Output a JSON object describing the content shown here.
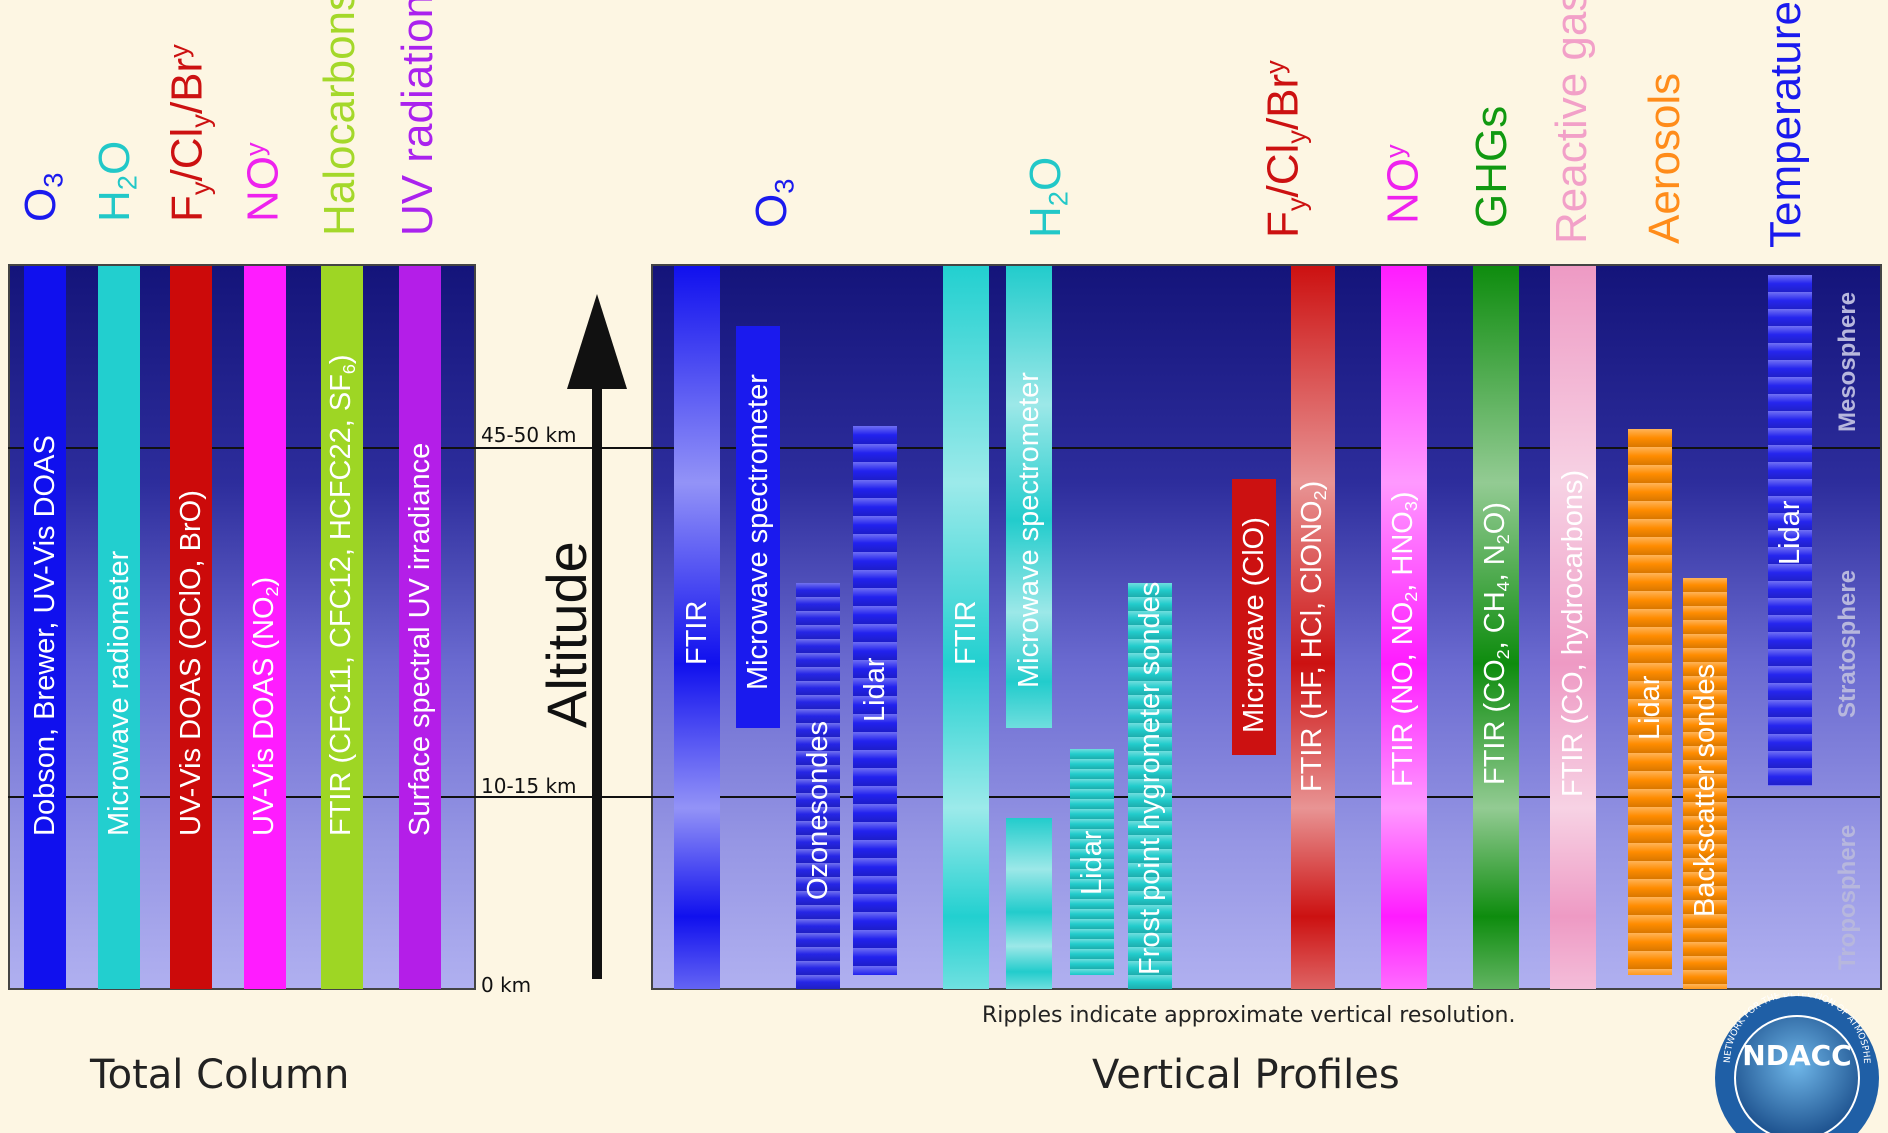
{
  "altitude_marks": [
    "0 km",
    "10-15 km",
    "45-50 km"
  ],
  "altitude_label": "Altitude",
  "zones": [
    "Troposphere",
    "Stratosphere",
    "Mesosphere"
  ],
  "total_column": {
    "title": "Total Column",
    "headers": [
      {
        "name": "o3",
        "parts": [
          [
            "O",
            ""
          ],
          [
            "3",
            "sub"
          ]
        ],
        "color": "#1a1aee"
      },
      {
        "name": "h2o",
        "parts": [
          [
            "H",
            ""
          ],
          [
            "2",
            "sub"
          ],
          [
            "O",
            ""
          ]
        ],
        "color": "#22c8c8"
      },
      {
        "name": "fy-cly-bry",
        "parts": [
          [
            "F",
            ""
          ],
          [
            "y",
            "sub"
          ],
          [
            "/Cl",
            ""
          ],
          [
            "y",
            "sub"
          ],
          [
            "/Br",
            ""
          ],
          [
            "y",
            "sup"
          ]
        ],
        "color": "#cc1111"
      },
      {
        "name": "noy",
        "parts": [
          [
            "NO",
            ""
          ],
          [
            "y",
            "sup"
          ]
        ],
        "color": "#ee22ee"
      },
      {
        "name": "halocarbons",
        "parts": [
          [
            "Halocarbons",
            ""
          ]
        ],
        "color": "#a4d82a"
      },
      {
        "name": "uv-radiation",
        "parts": [
          [
            "UV radiation",
            ""
          ]
        ],
        "color": "#aa22ee"
      }
    ],
    "bars": [
      {
        "name": "dobson",
        "color": "#1010ee",
        "parts": [
          [
            "Dobson, Brewer, UV-Vis DOAS",
            ""
          ]
        ]
      },
      {
        "name": "microwave-radiometer",
        "color": "#22cfcf",
        "parts": [
          [
            "Microwave radiometer",
            ""
          ]
        ]
      },
      {
        "name": "uv-vis-doas-oclo-bro",
        "color": "#cc0a0a",
        "parts": [
          [
            "UV-Vis DOAS (OClO, BrO)",
            ""
          ]
        ]
      },
      {
        "name": "uv-vis-doas-no2",
        "color": "#ff1cff",
        "parts": [
          [
            "UV-Vis DOAS (NO",
            ""
          ],
          [
            "2",
            "sub"
          ],
          [
            ")",
            ""
          ]
        ]
      },
      {
        "name": "ftir-halocarbons",
        "color": "#9ed624",
        "parts": [
          [
            "FTIR (CFC11, CFC12, HCFC22, SF",
            ""
          ],
          [
            "6",
            "sub"
          ],
          [
            ")",
            ""
          ]
        ]
      },
      {
        "name": "surface-uv",
        "color": "#b41ee8",
        "parts": [
          [
            "Surface spectral UV irradiance",
            ""
          ]
        ]
      }
    ]
  },
  "vertical_profiles": {
    "title": "Vertical Profiles",
    "note": "Ripples indicate approximate vertical resolution.",
    "headers": [
      {
        "name": "o3",
        "parts": [
          [
            "O",
            ""
          ],
          [
            "3",
            "sub"
          ]
        ],
        "color": "#1a1aee"
      },
      {
        "name": "h2o",
        "parts": [
          [
            "H",
            ""
          ],
          [
            "2",
            "sub"
          ],
          [
            "O",
            ""
          ]
        ],
        "color": "#22c8c8"
      },
      {
        "name": "fy-cly-bry",
        "parts": [
          [
            "F",
            ""
          ],
          [
            "y",
            "sub"
          ],
          [
            "/Cl",
            ""
          ],
          [
            "y",
            "sub"
          ],
          [
            "/Br",
            ""
          ],
          [
            "y",
            "sup"
          ]
        ],
        "color": "#cc1111"
      },
      {
        "name": "noy",
        "parts": [
          [
            "NO",
            ""
          ],
          [
            "y",
            "sup"
          ]
        ],
        "color": "#ee22ee"
      },
      {
        "name": "ghgs",
        "parts": [
          [
            "GHGs",
            ""
          ]
        ],
        "color": "#119911"
      },
      {
        "name": "reactive-gases",
        "parts": [
          [
            "Reactive gases",
            ""
          ]
        ],
        "color": "#f2a0c8"
      },
      {
        "name": "aerosols",
        "parts": [
          [
            "Aerosols",
            ""
          ]
        ],
        "color": "#ff8c1a"
      },
      {
        "name": "temperature",
        "parts": [
          [
            "Temperature",
            ""
          ]
        ],
        "color": "#1a1aee"
      }
    ],
    "bars": [
      {
        "name": "o3-ftir",
        "color": "#1010ee",
        "style": "smooth",
        "parts": [
          [
            "FTIR",
            ""
          ]
        ]
      },
      {
        "name": "o3-microwave-spectrometer",
        "color": "#1a1aee",
        "style": "plain",
        "parts": [
          [
            "Microwave spectrometer",
            ""
          ]
        ]
      },
      {
        "name": "ozonesondes",
        "color": "#2626e6",
        "style": "ripple",
        "parts": [
          [
            "Ozonesondes",
            ""
          ]
        ]
      },
      {
        "name": "o3-lidar",
        "color": "#2222ee",
        "style": "ripple",
        "parts": [
          [
            "Lidar",
            ""
          ]
        ]
      },
      {
        "name": "h2o-ftir",
        "color": "#22d0d0",
        "style": "smooth",
        "parts": [
          [
            "FTIR",
            ""
          ]
        ]
      },
      {
        "name": "h2o-microwave-spectrometer",
        "color": "#22cccc",
        "style": "smooth",
        "parts": [
          [
            "Microwave spectrometer",
            ""
          ]
        ]
      },
      {
        "name": "h2o-lidar",
        "color": "#22cccc",
        "style": "ripple",
        "parts": [
          [
            "Lidar",
            ""
          ]
        ]
      },
      {
        "name": "frost-point-hygrometer",
        "color": "#22cccc",
        "style": "ripple",
        "parts": [
          [
            "Frost point hygrometer sondes",
            ""
          ]
        ]
      },
      {
        "name": "microwave-clo",
        "color": "#cc1111",
        "style": "plain",
        "parts": [
          [
            "Microwave (ClO)",
            ""
          ]
        ]
      },
      {
        "name": "ftir-hf-hcl",
        "color": "#cc1111",
        "style": "smooth",
        "parts": [
          [
            "FTIR (HF, HCl, ClONO",
            ""
          ],
          [
            "2",
            "sub"
          ],
          [
            ")",
            ""
          ]
        ]
      },
      {
        "name": "ftir-noy",
        "color": "#ff1cff",
        "style": "smooth",
        "parts": [
          [
            "FTIR (NO, NO",
            ""
          ],
          [
            "2",
            "sub"
          ],
          [
            ", HNO",
            ""
          ],
          [
            "3",
            "sub"
          ],
          [
            ")",
            ""
          ]
        ]
      },
      {
        "name": "ftir-ghgs",
        "color": "#0e8c0e",
        "style": "smooth",
        "parts": [
          [
            "FTIR (CO",
            ""
          ],
          [
            "2",
            "sub"
          ],
          [
            ", CH",
            ""
          ],
          [
            "4",
            "sub"
          ],
          [
            ", N",
            ""
          ],
          [
            "2",
            "sub"
          ],
          [
            "O)",
            ""
          ]
        ]
      },
      {
        "name": "ftir-co",
        "color": "#ee9ac4",
        "style": "smooth",
        "parts": [
          [
            "FTIR (CO, hydrocarbons)",
            ""
          ]
        ]
      },
      {
        "name": "aerosol-lidar",
        "color": "#ff8c00",
        "style": "ripple",
        "parts": [
          [
            "Lidar",
            ""
          ]
        ]
      },
      {
        "name": "backscatter-sondes",
        "color": "#ff8c00",
        "style": "ripple",
        "parts": [
          [
            "Backscatter sondes",
            ""
          ]
        ]
      },
      {
        "name": "temperature-lidar",
        "color": "#2626ee",
        "style": "ripple",
        "parts": [
          [
            "Lidar",
            ""
          ]
        ]
      }
    ]
  },
  "logo": {
    "text": "NDACC",
    "ring_text": "NETWORK FOR THE DETECTION OF ATMOSPHERIC COMPOSITION CHANGE"
  }
}
